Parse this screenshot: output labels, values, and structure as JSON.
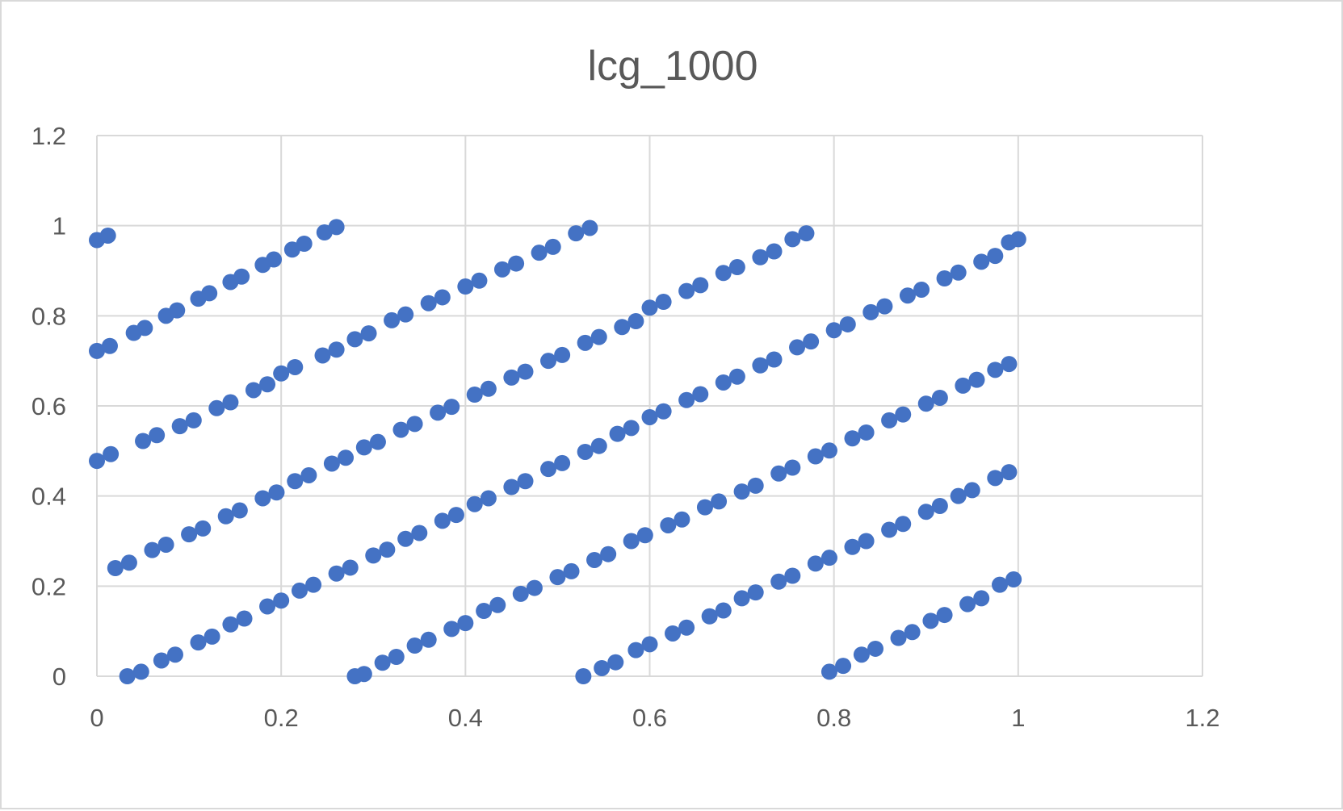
{
  "chart_data": {
    "type": "scatter",
    "title": "lcg_1000",
    "xlabel": "",
    "ylabel": "",
    "xlim": [
      0,
      1.2
    ],
    "ylim": [
      0,
      1.2
    ],
    "x_ticks": [
      "0",
      "0.2",
      "0.4",
      "0.6",
      "0.8",
      "1",
      "1.2"
    ],
    "y_ticks": [
      "0",
      "0.2",
      "0.4",
      "0.6",
      "0.8",
      "1",
      "1.2"
    ],
    "grid": true,
    "legend": "none",
    "marker_color": "#4472c4",
    "series": [
      {
        "points": [
          [
            0.0,
            0.968
          ],
          [
            0.012,
            0.978
          ],
          [
            0.0,
            0.722
          ],
          [
            0.014,
            0.733
          ],
          [
            0.04,
            0.762
          ],
          [
            0.052,
            0.773
          ],
          [
            0.075,
            0.8
          ],
          [
            0.087,
            0.812
          ],
          [
            0.11,
            0.838
          ],
          [
            0.122,
            0.85
          ],
          [
            0.145,
            0.875
          ],
          [
            0.157,
            0.887
          ],
          [
            0.18,
            0.913
          ],
          [
            0.192,
            0.925
          ],
          [
            0.212,
            0.947
          ],
          [
            0.225,
            0.96
          ],
          [
            0.247,
            0.985
          ],
          [
            0.26,
            0.997
          ],
          [
            0.0,
            0.478
          ],
          [
            0.015,
            0.493
          ],
          [
            0.05,
            0.522
          ],
          [
            0.065,
            0.535
          ],
          [
            0.09,
            0.555
          ],
          [
            0.105,
            0.568
          ],
          [
            0.13,
            0.595
          ],
          [
            0.145,
            0.608
          ],
          [
            0.17,
            0.635
          ],
          [
            0.185,
            0.648
          ],
          [
            0.2,
            0.672
          ],
          [
            0.215,
            0.686
          ],
          [
            0.245,
            0.712
          ],
          [
            0.26,
            0.725
          ],
          [
            0.28,
            0.748
          ],
          [
            0.295,
            0.761
          ],
          [
            0.32,
            0.79
          ],
          [
            0.335,
            0.803
          ],
          [
            0.36,
            0.828
          ],
          [
            0.375,
            0.841
          ],
          [
            0.4,
            0.865
          ],
          [
            0.415,
            0.878
          ],
          [
            0.44,
            0.903
          ],
          [
            0.455,
            0.916
          ],
          [
            0.48,
            0.94
          ],
          [
            0.495,
            0.953
          ],
          [
            0.52,
            0.983
          ],
          [
            0.535,
            0.995
          ],
          [
            0.02,
            0.24
          ],
          [
            0.035,
            0.252
          ],
          [
            0.06,
            0.28
          ],
          [
            0.075,
            0.292
          ],
          [
            0.1,
            0.315
          ],
          [
            0.115,
            0.328
          ],
          [
            0.14,
            0.355
          ],
          [
            0.155,
            0.368
          ],
          [
            0.18,
            0.395
          ],
          [
            0.195,
            0.408
          ],
          [
            0.215,
            0.433
          ],
          [
            0.23,
            0.446
          ],
          [
            0.255,
            0.472
          ],
          [
            0.27,
            0.485
          ],
          [
            0.29,
            0.508
          ],
          [
            0.305,
            0.52
          ],
          [
            0.33,
            0.547
          ],
          [
            0.345,
            0.56
          ],
          [
            0.37,
            0.585
          ],
          [
            0.385,
            0.598
          ],
          [
            0.41,
            0.625
          ],
          [
            0.425,
            0.638
          ],
          [
            0.45,
            0.663
          ],
          [
            0.465,
            0.676
          ],
          [
            0.49,
            0.7
          ],
          [
            0.505,
            0.713
          ],
          [
            0.53,
            0.74
          ],
          [
            0.545,
            0.753
          ],
          [
            0.57,
            0.775
          ],
          [
            0.585,
            0.788
          ],
          [
            0.6,
            0.818
          ],
          [
            0.615,
            0.831
          ],
          [
            0.64,
            0.855
          ],
          [
            0.655,
            0.868
          ],
          [
            0.68,
            0.895
          ],
          [
            0.695,
            0.908
          ],
          [
            0.72,
            0.93
          ],
          [
            0.735,
            0.943
          ],
          [
            0.755,
            0.97
          ],
          [
            0.77,
            0.983
          ],
          [
            0.033,
            0.0
          ],
          [
            0.048,
            0.01
          ],
          [
            0.07,
            0.035
          ],
          [
            0.085,
            0.048
          ],
          [
            0.11,
            0.075
          ],
          [
            0.125,
            0.088
          ],
          [
            0.145,
            0.115
          ],
          [
            0.16,
            0.128
          ],
          [
            0.185,
            0.155
          ],
          [
            0.2,
            0.168
          ],
          [
            0.22,
            0.19
          ],
          [
            0.235,
            0.203
          ],
          [
            0.26,
            0.228
          ],
          [
            0.275,
            0.241
          ],
          [
            0.3,
            0.268
          ],
          [
            0.315,
            0.281
          ],
          [
            0.335,
            0.305
          ],
          [
            0.35,
            0.318
          ],
          [
            0.375,
            0.345
          ],
          [
            0.39,
            0.358
          ],
          [
            0.41,
            0.382
          ],
          [
            0.425,
            0.395
          ],
          [
            0.45,
            0.42
          ],
          [
            0.465,
            0.433
          ],
          [
            0.49,
            0.46
          ],
          [
            0.505,
            0.473
          ],
          [
            0.53,
            0.498
          ],
          [
            0.545,
            0.511
          ],
          [
            0.565,
            0.538
          ],
          [
            0.58,
            0.551
          ],
          [
            0.6,
            0.575
          ],
          [
            0.615,
            0.588
          ],
          [
            0.64,
            0.613
          ],
          [
            0.655,
            0.626
          ],
          [
            0.68,
            0.652
          ],
          [
            0.695,
            0.665
          ],
          [
            0.72,
            0.69
          ],
          [
            0.735,
            0.703
          ],
          [
            0.76,
            0.73
          ],
          [
            0.775,
            0.743
          ],
          [
            0.8,
            0.768
          ],
          [
            0.815,
            0.781
          ],
          [
            0.84,
            0.808
          ],
          [
            0.855,
            0.821
          ],
          [
            0.88,
            0.845
          ],
          [
            0.895,
            0.858
          ],
          [
            0.92,
            0.883
          ],
          [
            0.935,
            0.896
          ],
          [
            0.96,
            0.92
          ],
          [
            0.975,
            0.933
          ],
          [
            0.99,
            0.963
          ],
          [
            1.0,
            0.97
          ],
          [
            0.28,
            0.0
          ],
          [
            0.29,
            0.005
          ],
          [
            0.31,
            0.03
          ],
          [
            0.325,
            0.043
          ],
          [
            0.345,
            0.068
          ],
          [
            0.36,
            0.081
          ],
          [
            0.385,
            0.105
          ],
          [
            0.4,
            0.118
          ],
          [
            0.42,
            0.145
          ],
          [
            0.435,
            0.158
          ],
          [
            0.46,
            0.183
          ],
          [
            0.475,
            0.196
          ],
          [
            0.5,
            0.22
          ],
          [
            0.515,
            0.233
          ],
          [
            0.54,
            0.258
          ],
          [
            0.555,
            0.271
          ],
          [
            0.58,
            0.3
          ],
          [
            0.595,
            0.313
          ],
          [
            0.62,
            0.335
          ],
          [
            0.635,
            0.348
          ],
          [
            0.66,
            0.375
          ],
          [
            0.675,
            0.388
          ],
          [
            0.7,
            0.41
          ],
          [
            0.715,
            0.423
          ],
          [
            0.74,
            0.45
          ],
          [
            0.755,
            0.463
          ],
          [
            0.78,
            0.488
          ],
          [
            0.795,
            0.501
          ],
          [
            0.82,
            0.528
          ],
          [
            0.835,
            0.541
          ],
          [
            0.86,
            0.568
          ],
          [
            0.875,
            0.581
          ],
          [
            0.9,
            0.605
          ],
          [
            0.915,
            0.618
          ],
          [
            0.94,
            0.645
          ],
          [
            0.955,
            0.658
          ],
          [
            0.975,
            0.68
          ],
          [
            0.99,
            0.693
          ],
          [
            0.528,
            0.0
          ],
          [
            0.548,
            0.018
          ],
          [
            0.563,
            0.031
          ],
          [
            0.585,
            0.058
          ],
          [
            0.6,
            0.071
          ],
          [
            0.625,
            0.095
          ],
          [
            0.64,
            0.108
          ],
          [
            0.665,
            0.133
          ],
          [
            0.68,
            0.146
          ],
          [
            0.7,
            0.173
          ],
          [
            0.715,
            0.186
          ],
          [
            0.74,
            0.21
          ],
          [
            0.755,
            0.223
          ],
          [
            0.78,
            0.25
          ],
          [
            0.795,
            0.263
          ],
          [
            0.82,
            0.287
          ],
          [
            0.835,
            0.3
          ],
          [
            0.86,
            0.325
          ],
          [
            0.875,
            0.338
          ],
          [
            0.9,
            0.365
          ],
          [
            0.915,
            0.378
          ],
          [
            0.935,
            0.4
          ],
          [
            0.95,
            0.413
          ],
          [
            0.975,
            0.44
          ],
          [
            0.99,
            0.453
          ],
          [
            0.795,
            0.01
          ],
          [
            0.81,
            0.023
          ],
          [
            0.83,
            0.048
          ],
          [
            0.845,
            0.061
          ],
          [
            0.87,
            0.085
          ],
          [
            0.885,
            0.098
          ],
          [
            0.905,
            0.123
          ],
          [
            0.92,
            0.136
          ],
          [
            0.945,
            0.16
          ],
          [
            0.96,
            0.173
          ],
          [
            0.98,
            0.203
          ],
          [
            0.995,
            0.215
          ]
        ]
      }
    ]
  }
}
